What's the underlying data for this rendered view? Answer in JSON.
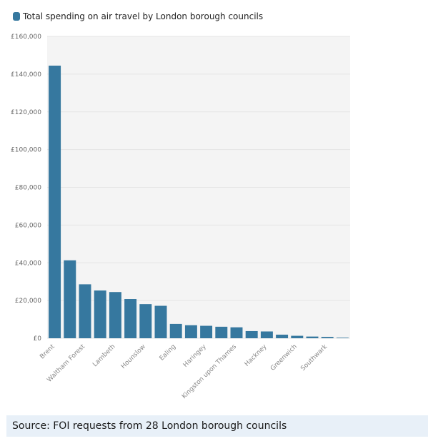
{
  "chart_data": {
    "type": "bar",
    "legend": {
      "label": "Total spending on air travel by London borough councils",
      "position": "top-left"
    },
    "series": [
      {
        "name": "Total spending on air travel by London borough councils",
        "values": [
          144500,
          41300,
          28600,
          25300,
          24500,
          20800,
          18100,
          17200,
          7600,
          6900,
          6600,
          6100,
          5800,
          3800,
          3600,
          1900,
          1300,
          900,
          700,
          300
        ]
      }
    ],
    "categories": [
      "Brent",
      "",
      "Waltham Forest",
      "",
      "Lambeth",
      "",
      "Hounslow",
      "",
      "Ealing",
      "",
      "Haringey",
      "",
      "Kingston upon Thames",
      "",
      "Hackney",
      "",
      "Greenwich",
      "",
      "Southwark",
      ""
    ],
    "yticks": [
      "£0",
      "£20,000",
      "£40,000",
      "£60,000",
      "£80,000",
      "£100,000",
      "£120,000",
      "£140,000",
      "£160,000"
    ],
    "ylim": [
      0,
      160000
    ],
    "grid": true,
    "colors": {
      "bar": "#36789f",
      "plot_bg": "#f4f4f4",
      "grid": "#e4e4e4",
      "tick_text": "#666666"
    }
  },
  "source": {
    "text": "Source: FOI requests from 28 London borough councils"
  }
}
